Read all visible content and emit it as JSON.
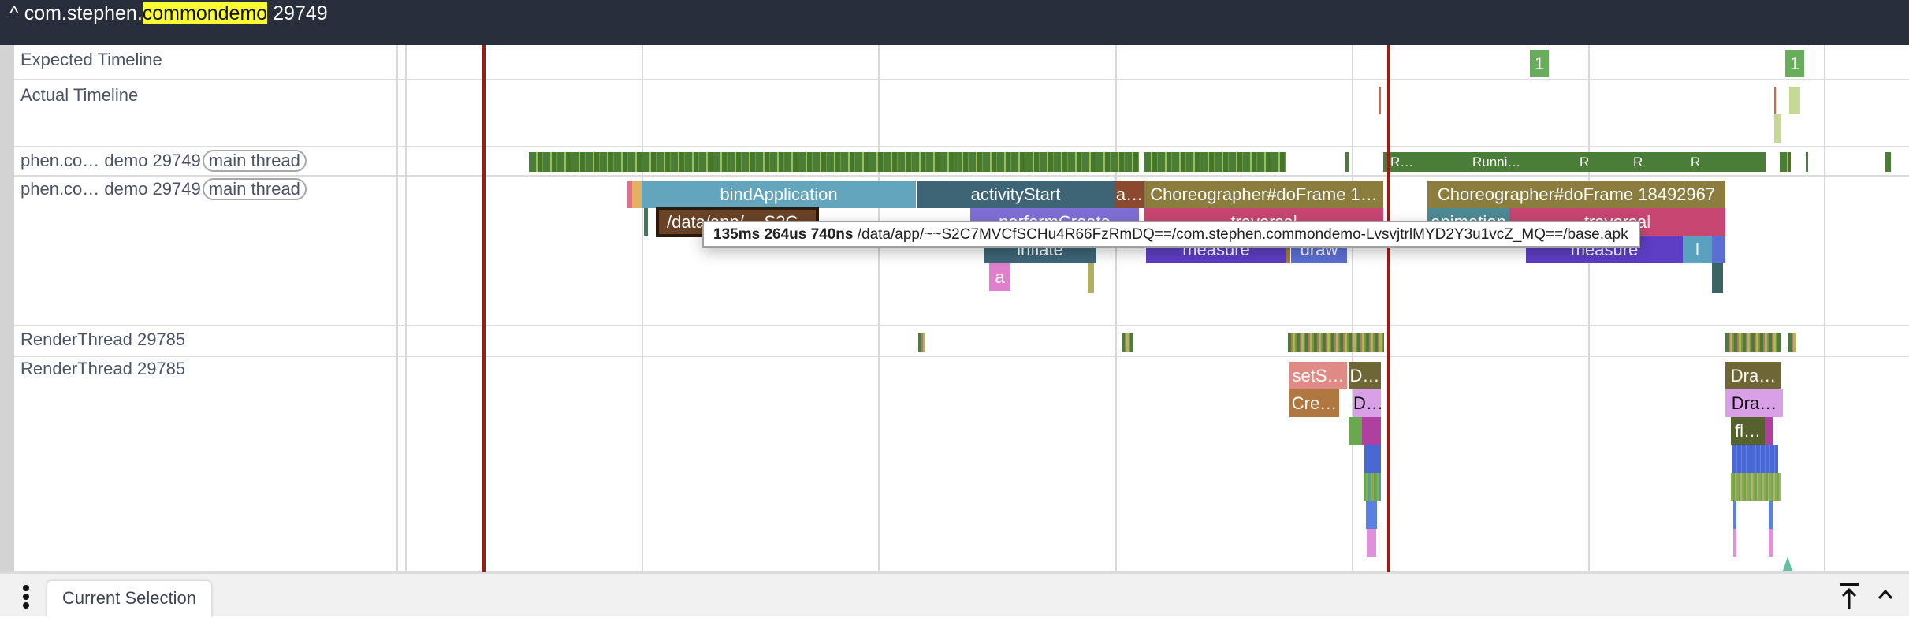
{
  "header": {
    "prefix": "com.stephen.",
    "highlight": "commondemo",
    "suffix": " 29749",
    "collapse_icon": "^"
  },
  "tracks": {
    "expected": "Expected Timeline",
    "actual": "Actual Timeline",
    "main_state": {
      "name": "phen.co… demo 29749",
      "tag": "main thread"
    },
    "main_slices": {
      "name": "phen.co… demo 29749",
      "tag": "main thread"
    },
    "render_state": "RenderThread 29785",
    "render_slices": "RenderThread 29785"
  },
  "expected_frames": [
    "1",
    "1"
  ],
  "thread_states": [
    "R…",
    "Runni…",
    "R",
    "R",
    "R"
  ],
  "main_slices": {
    "bindApplication": "bindApplication",
    "activityStart": "activityStart",
    "a1": "a…",
    "doframe1": "Choreographer#doFrame 1…",
    "doframe2": "Choreographer#doFrame 18492967",
    "data_app": "/data/app/~~S2C…",
    "performCreate": "performCreate",
    "traversal1": "traversal",
    "animation": "animation",
    "traversal2": "traversal",
    "inflate": "inflate",
    "measure1": "measure",
    "draw": "draw",
    "measure2": "measure",
    "l": "l",
    "a2": "a"
  },
  "render_slices": {
    "setS": "setS…",
    "D1": "D…",
    "Cre": "Cre…",
    "D2": "D…",
    "Dra1": "Dra…",
    "Dra2": "Dra…",
    "fl": "fl…"
  },
  "tooltip": {
    "duration": "135ms 264us 740ns",
    "text": " /data/app/~~S2C7MVCfSCHu4R66FzRmDQ==/com.stephen.commondemo-LvsvjtrlMYD2Y3u1vcZ_MQ==/base.apk"
  },
  "bottom": {
    "tab": "Current Selection",
    "menu_icon": "kebab-menu-icon",
    "pin_icon": "arrow-to-top-icon",
    "collapse_icon": "chevron-up-icon"
  },
  "colors": {
    "header": "#282e3b",
    "highlight": "#fcfc35",
    "cursor": "#9b1c16",
    "running": "#4a7d38"
  }
}
